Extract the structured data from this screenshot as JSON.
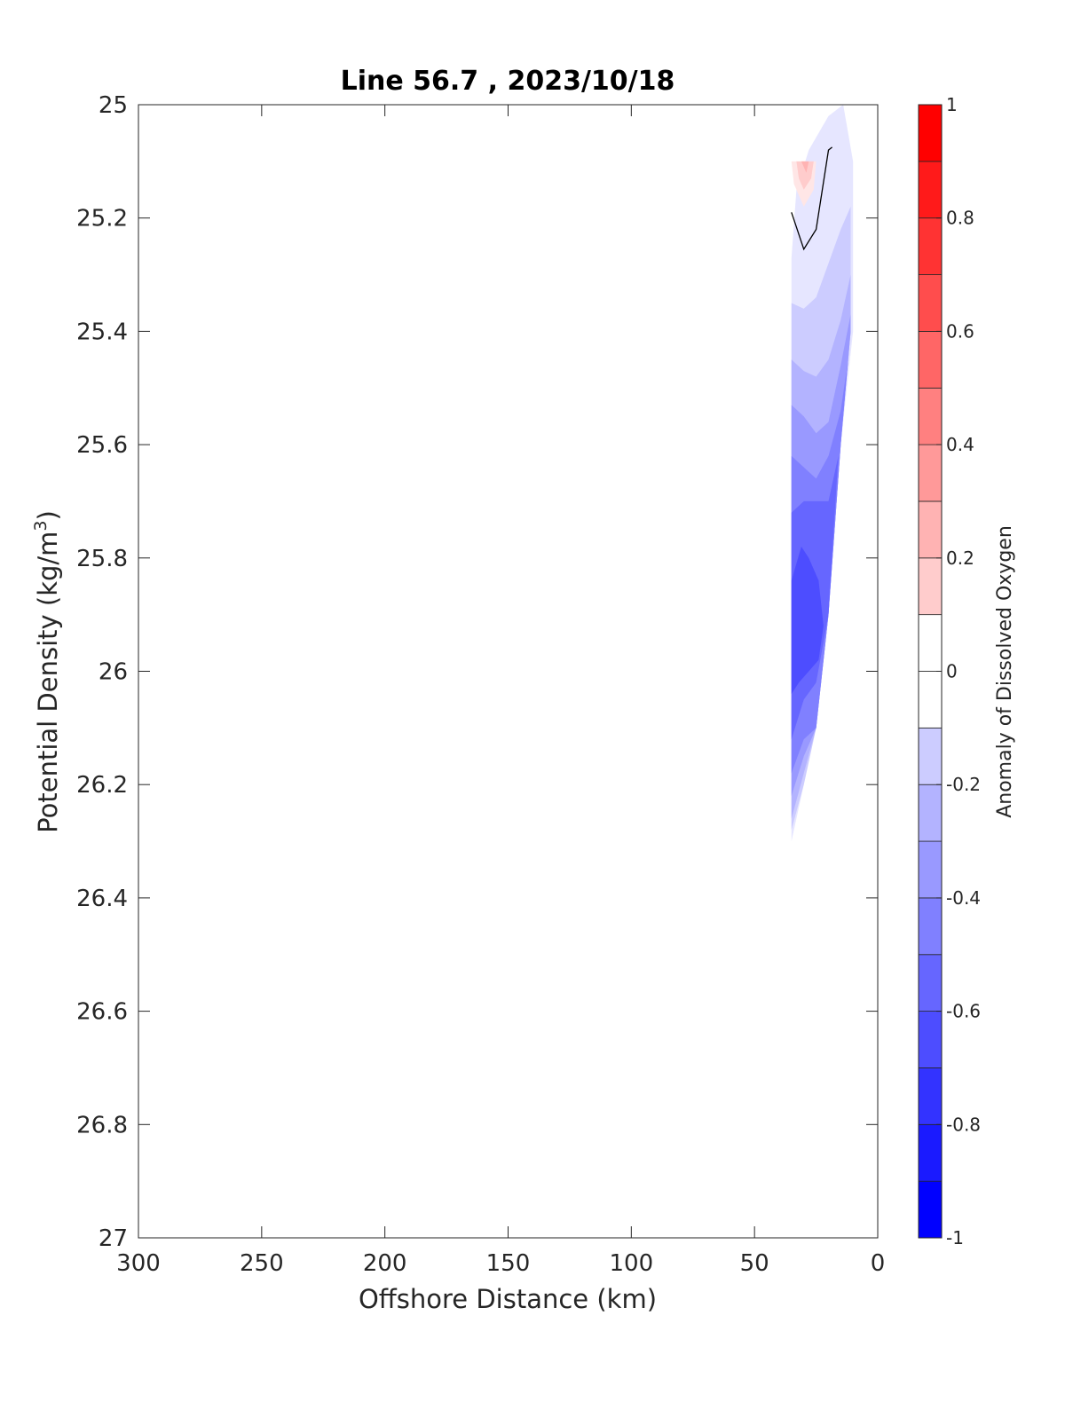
{
  "chart_data": {
    "type": "contour",
    "title": "Line 56.7 , 2023/10/18",
    "xlabel": "Offshore Distance (km)",
    "ylabel_main": "Potential Density (kg/m",
    "ylabel_sup": "3",
    "ylabel_close": ")",
    "xlim": [
      300,
      0
    ],
    "ylim": [
      25,
      27
    ],
    "x_reversed": true,
    "y_reversed": true,
    "xticks": [
      300,
      250,
      200,
      150,
      100,
      50,
      0
    ],
    "yticks": [
      25,
      25.2,
      25.4,
      25.6,
      25.8,
      26,
      26.2,
      26.4,
      26.6,
      26.8,
      27
    ],
    "xtick_labels": [
      "300",
      "250",
      "200",
      "150",
      "100",
      "50",
      "0"
    ],
    "ytick_labels": [
      "25",
      "25.2",
      "25.4",
      "25.6",
      "25.8",
      "26",
      "26.2",
      "26.4",
      "26.6",
      "26.8",
      "27"
    ],
    "colorbar": {
      "label": "Anomaly of Dissolved Oxygen",
      "range": [
        -1,
        1
      ],
      "levels": [
        -1,
        -0.9,
        -0.8,
        -0.7,
        -0.6,
        -0.5,
        -0.4,
        -0.3,
        -0.2,
        -0.1,
        0,
        0.1,
        0.2,
        0.3,
        0.4,
        0.5,
        0.6,
        0.7,
        0.8,
        0.9,
        1
      ],
      "ticks": [
        1,
        0.8,
        0.6,
        0.4,
        0.2,
        0,
        -0.2,
        -0.4,
        -0.6,
        -0.8,
        -1
      ],
      "tick_labels": [
        "1",
        "0.8",
        "0.6",
        "0.4",
        "0.2",
        "0",
        "-0.2",
        "-0.4",
        "-0.6",
        "-0.8",
        "-1"
      ],
      "positive_color": "#ff0000",
      "negative_color": "#0000ff",
      "neutral_color": "#ffffff"
    },
    "filled_regions": [
      {
        "level": -0.1,
        "points": [
          [
            35,
            25.27
          ],
          [
            33,
            25.15
          ],
          [
            28,
            25.08
          ],
          [
            20,
            25.02
          ],
          [
            14,
            25.0
          ],
          [
            10,
            25.1
          ],
          [
            10,
            25.4
          ],
          [
            15,
            25.6
          ],
          [
            20,
            25.9
          ],
          [
            25,
            26.1
          ],
          [
            30,
            26.2
          ],
          [
            35,
            26.3
          ]
        ]
      },
      {
        "level": -0.2,
        "points": [
          [
            35,
            25.35
          ],
          [
            30,
            25.36
          ],
          [
            25,
            25.34
          ],
          [
            20,
            25.28
          ],
          [
            15,
            25.22
          ],
          [
            11,
            25.18
          ],
          [
            11,
            25.4
          ],
          [
            15,
            25.6
          ],
          [
            20,
            25.9
          ],
          [
            25,
            26.1
          ],
          [
            30,
            26.2
          ],
          [
            35,
            26.28
          ]
        ]
      },
      {
        "level": -0.3,
        "points": [
          [
            35,
            25.45
          ],
          [
            30,
            25.47
          ],
          [
            25,
            25.48
          ],
          [
            20,
            25.45
          ],
          [
            15,
            25.38
          ],
          [
            11,
            25.3
          ],
          [
            11,
            25.4
          ],
          [
            15,
            25.6
          ],
          [
            20,
            25.9
          ],
          [
            25,
            26.1
          ],
          [
            30,
            26.18
          ],
          [
            35,
            26.26
          ]
        ]
      },
      {
        "level": -0.4,
        "points": [
          [
            35,
            25.53
          ],
          [
            30,
            25.55
          ],
          [
            25,
            25.58
          ],
          [
            20,
            25.56
          ],
          [
            15,
            25.46
          ],
          [
            11,
            25.37
          ],
          [
            11,
            25.4
          ],
          [
            15,
            25.6
          ],
          [
            20,
            25.9
          ],
          [
            25,
            26.1
          ],
          [
            30,
            26.15
          ],
          [
            35,
            26.22
          ]
        ]
      },
      {
        "level": -0.5,
        "points": [
          [
            35,
            25.62
          ],
          [
            30,
            25.64
          ],
          [
            25,
            25.66
          ],
          [
            20,
            25.62
          ],
          [
            15,
            25.54
          ],
          [
            12,
            25.45
          ],
          [
            15,
            25.6
          ],
          [
            20,
            25.9
          ],
          [
            25,
            26.1
          ],
          [
            30,
            26.12
          ],
          [
            35,
            26.18
          ]
        ]
      },
      {
        "level": -0.6,
        "points": [
          [
            35,
            25.72
          ],
          [
            30,
            25.7
          ],
          [
            25,
            25.7
          ],
          [
            20,
            25.7
          ],
          [
            16,
            25.62
          ],
          [
            20,
            25.9
          ],
          [
            25,
            26.02
          ],
          [
            30,
            26.05
          ],
          [
            35,
            26.12
          ]
        ]
      },
      {
        "level": -0.7,
        "points": [
          [
            35,
            25.84
          ],
          [
            31,
            25.78
          ],
          [
            28,
            25.8
          ],
          [
            24,
            25.84
          ],
          [
            22,
            25.92
          ],
          [
            24,
            25.98
          ],
          [
            28,
            26.0
          ],
          [
            32,
            26.02
          ],
          [
            35,
            26.04
          ]
        ]
      },
      {
        "level": 0.1,
        "points": [
          [
            35,
            25.1
          ],
          [
            25,
            25.1
          ],
          [
            26,
            25.15
          ],
          [
            30,
            25.18
          ],
          [
            34,
            25.14
          ]
        ]
      },
      {
        "level": 0.2,
        "points": [
          [
            33,
            25.1
          ],
          [
            26,
            25.1
          ],
          [
            27,
            25.13
          ],
          [
            30,
            25.15
          ],
          [
            32,
            25.13
          ]
        ]
      },
      {
        "level": 0.3,
        "points": [
          [
            31,
            25.1
          ],
          [
            28,
            25.1
          ],
          [
            29,
            25.12
          ]
        ]
      }
    ],
    "contour_lines": [
      {
        "level": 0,
        "points": [
          [
            35,
            25.19
          ],
          [
            30,
            25.255
          ],
          [
            25,
            25.22
          ],
          [
            20,
            25.08
          ],
          [
            18.5,
            25.075
          ]
        ]
      }
    ]
  }
}
